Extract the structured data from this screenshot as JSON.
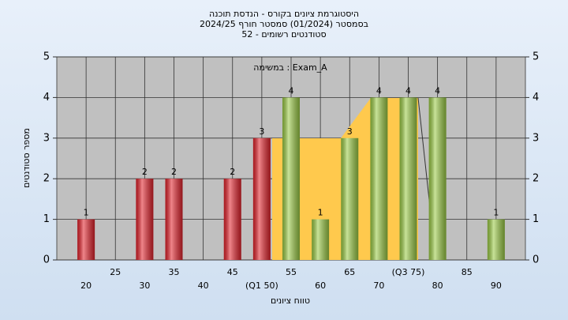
{
  "chart_data": {
    "type": "histogram",
    "title": "היסטוגרמת ציונים בקורס - הנדסת תוכנה",
    "subtitle": "בסמסטר  (01/2024)  סמסטר חורף 2024/25",
    "subtitle2": "סטודנטים רשומים - 52",
    "annotation": "Exam_A : במשימה",
    "xlabel": "טווח ציונים",
    "ylabel": "מספר סטודנטים",
    "x": [
      20,
      30,
      35,
      45,
      50,
      55,
      60,
      65,
      70,
      75,
      80,
      90
    ],
    "values": [
      1,
      2,
      2,
      2,
      3,
      4,
      1,
      3,
      4,
      4,
      4,
      1
    ],
    "colors": [
      "#e3222b",
      "#e3222b",
      "#e3222b",
      "#e3222b",
      "#e3222b",
      "#9bcb45",
      "#9bcb45",
      "#9bcb45",
      "#9bcb45",
      "#9bcb45",
      "#9bcb45",
      "#9bcb45"
    ],
    "xlim": [
      15,
      95
    ],
    "xticks": [
      20,
      25,
      30,
      35,
      40,
      45,
      {
        "value": 50,
        "label": "(Q1 50)"
      },
      55,
      60,
      65,
      70,
      {
        "value": 75,
        "label": "(Q3 75)"
      },
      80,
      85,
      90
    ],
    "ylim": [
      0,
      5
    ],
    "yticks": [
      0,
      1,
      2,
      3,
      4,
      5
    ],
    "grid": true
  }
}
